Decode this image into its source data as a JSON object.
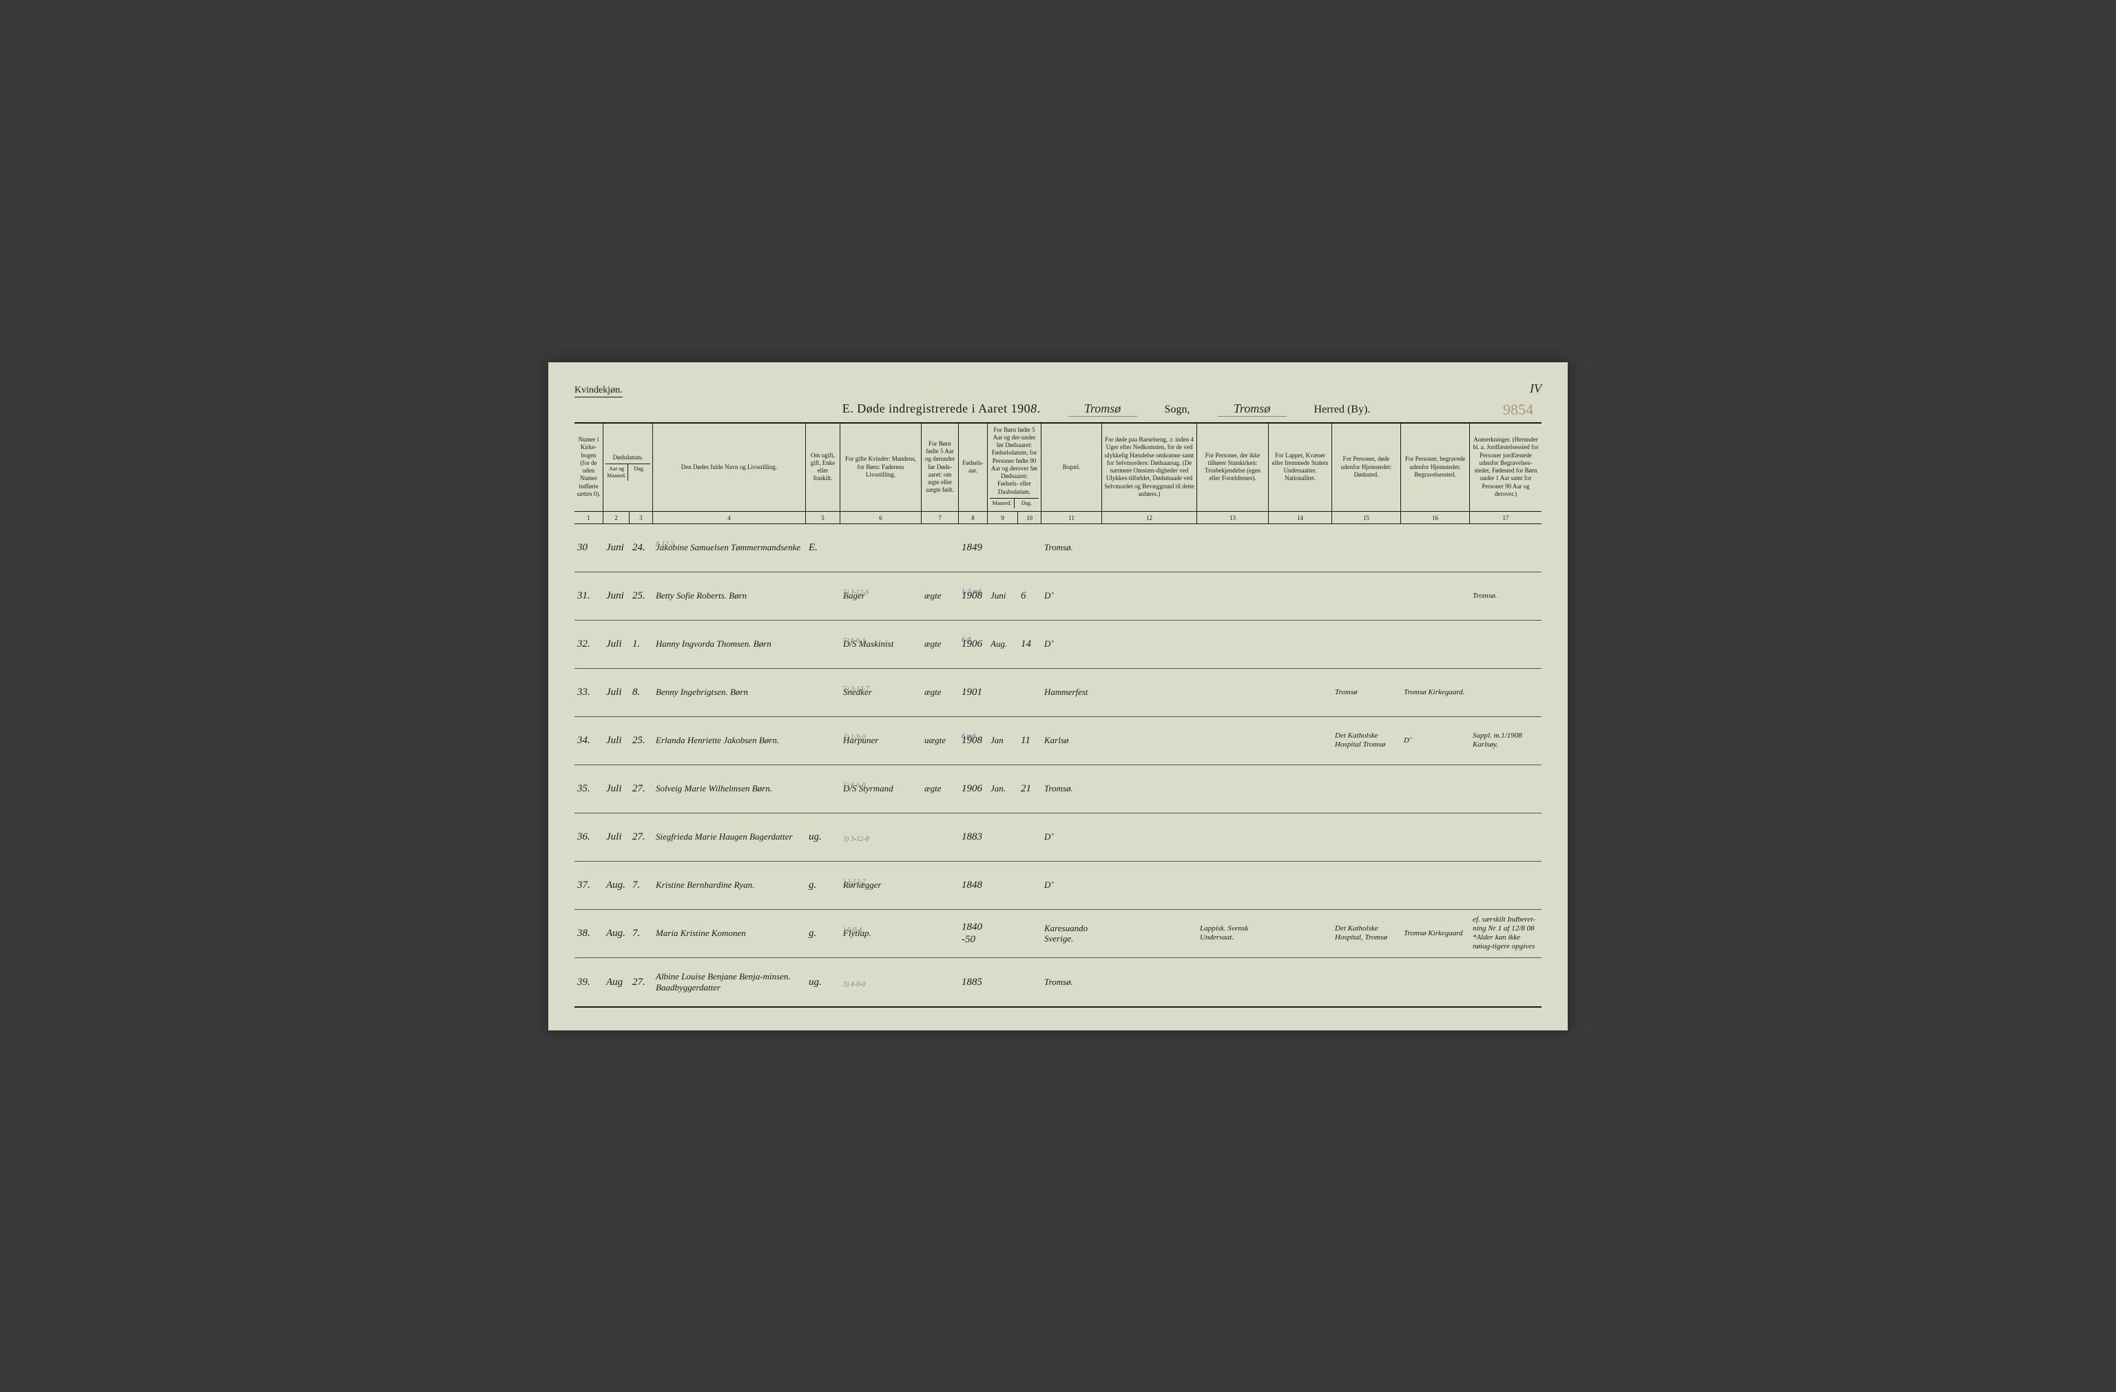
{
  "meta": {
    "gender_label": "Kvindekjøn.",
    "title_prefix": "E.   Døde indregistrerede i Aaret 190",
    "year_digit": "8",
    "title_suffix": ".",
    "sogn_value": "Tromsø",
    "sogn_label": "Sogn,",
    "herred_value": "Tromsø",
    "herred_label": "Herred (By).",
    "page_number": "IV",
    "faint_number": "9854"
  },
  "headers": [
    {
      "w": "c1",
      "text": "Numer i Kirke-bogen (for de uden Numer indførte sættes 0)."
    },
    {
      "w": "c23",
      "text": "Dødsdatum.",
      "sub": [
        "Aar og Maaned.",
        "Dag."
      ]
    },
    {
      "w": "c4",
      "text": "Den Dødes fulde Navn og Livsstilling."
    },
    {
      "w": "c5",
      "text": "Om ugift, gift, Enke eller fraskilt."
    },
    {
      "w": "c6",
      "text": "For gifte Kvinder: Mandens, for Børn: Faderens Livsstilling."
    },
    {
      "w": "c7",
      "text": "For Børn fødte 5 Aar og derunder før Døds-aaret: om ægte eller uægte født."
    },
    {
      "w": "c8",
      "text": "Fødsels-aar."
    },
    {
      "w": "c910",
      "text": "For Børn fødte 5 Aar og der-under før Dødsaaret: Fødselsdatum; for Personer fødte 90 Aar og derover før Dødsaaret: Fødsels- eller Daabsdatum.",
      "sub": [
        "Maaned.",
        "Dag."
      ]
    },
    {
      "w": "c11",
      "text": "Bopæl."
    },
    {
      "w": "c12",
      "text": "For døde paa Barselseng, ɔ: inden 4 Uger efter Nedkomsten, for de ved ulykkelig Hændelse omkomne samt for Selvmordere: Dødsaarsag. (De nærmere Omstæn-digheder ved Ulykkes-tilfældet, Dødsmaade ved Selvmordet og Bevæggrund til dette anføres.)"
    },
    {
      "w": "c13",
      "text": "For Personer, der ikke tilhører Statskirken: Trosbekjendelse (egen eller Forældrenes)."
    },
    {
      "w": "c14",
      "text": "For Lapper, Kvæner eller fremmede Staters Undersaatter. Nationalitet."
    },
    {
      "w": "c15",
      "text": "For Personer, døde udenfor Hjemstedet: Dødssted."
    },
    {
      "w": "c16",
      "text": "For Personer, begravede udenfor Hjemstedet: Begravelsessted."
    },
    {
      "w": "c17",
      "text": "Anmerkninger. (Herunder bl. a. Jordfæstelsessted for Personer jordfæstede udenfor Begravelses-stedet, Fødested for Børn under 1 Aar samt for Personer 90 Aar og derover.)"
    }
  ],
  "colnums": [
    "1",
    "2",
    "3",
    "4",
    "5",
    "6",
    "7",
    "8",
    "9",
    "10",
    "11",
    "12",
    "13",
    "14",
    "15",
    "16",
    "17"
  ],
  "rows": [
    {
      "c1": "30",
      "c2": "Juni",
      "c3": "24.",
      "c4": "Jakobine Samuelsen Tømmermandsenke",
      "c4_ann": "8-12-2",
      "c5": "E.",
      "c6": "",
      "c7": "",
      "c8": "1849",
      "c9": "",
      "c10": "",
      "c11": "Tromsø.",
      "c12": "",
      "c13": "",
      "c14": "",
      "c15": "",
      "c16": "",
      "c17": ""
    },
    {
      "c1": "31.",
      "c2": "Juni",
      "c3": "25.",
      "c4": "Betty Sofie Roberts. Børn",
      "c5": "",
      "c6": "Bager",
      "c6_ann": "5) 3-12-6",
      "c7": "ægte",
      "c8": "1908",
      "c8_ann": "1-2 md",
      "c9": "Juni",
      "c10": "6",
      "c11": "D˚",
      "c12": "",
      "c13": "",
      "c14": "",
      "c15": "",
      "c16": "",
      "c17": "Tromsø."
    },
    {
      "c1": "32.",
      "c2": "Juli",
      "c3": "1.",
      "c4": "Hanny Ingvorda Thomsen. Børn",
      "c5": "",
      "c6": "D/S Maskinist",
      "c6_ann": "5) 6-6-1",
      "c7": "ægte",
      "c8": "1906",
      "c8_ann": "6-0",
      "c9": "Aug.",
      "c10": "14",
      "c11": "D˚",
      "c12": "",
      "c13": "",
      "c14": "",
      "c15": "",
      "c16": "",
      "c17": ""
    },
    {
      "c1": "33.",
      "c2": "Juli",
      "c3": "8.",
      "c4": "Benny Ingebrigtsen. Børn",
      "c5": "",
      "c6": "Snedker",
      "c6_ann": "5) 3-12-7",
      "c7": "ægte",
      "c8": "1901",
      "c9": "",
      "c10": "",
      "c11": "Hammerfest",
      "c12": "",
      "c13": "",
      "c14": "",
      "c15": "Tromsø",
      "c16": "Tromsø Kirkegaard.",
      "c17": ""
    },
    {
      "c1": "34.",
      "c2": "Juli",
      "c3": "25.",
      "c4": "Erlanda Henriette Jakobsen Børn.",
      "c5": "",
      "c6": "Harpuner",
      "c6_ann": "3) 1-9-0",
      "c7": "uægte",
      "c8": "1908",
      "c8_ann": "6 md",
      "c9": "Jan",
      "c10": "11",
      "c11": "Karlsø",
      "c12": "",
      "c13": "",
      "c14": "",
      "c15": "Det Katholske Hospital Tromsø",
      "c16": "D˚",
      "c17": "Suppl. m.1/1908 Karlsøy."
    },
    {
      "c1": "35.",
      "c2": "Juli",
      "c3": "27.",
      "c4": "Solveig Marie Wilhelmsen Børn.",
      "c5": "",
      "c6": "D/S Styrmand",
      "c6_ann": "5) 6-6-0",
      "c7": "ægte",
      "c8": "1906",
      "c9": "Jan.",
      "c10": "21",
      "c11": "Tromsø.",
      "c12": "",
      "c13": "",
      "c14": "",
      "c15": "",
      "c16": "",
      "c17": ""
    },
    {
      "c1": "36.",
      "c2": "Juli",
      "c3": "27.",
      "c4": "Siegfrieda Marie Haugen Bagerdatter",
      "c5": "ug.",
      "c6": "",
      "c6_ann": "3) 3-12-8",
      "c7": "",
      "c8": "1883",
      "c9": "",
      "c10": "",
      "c11": "D˚",
      "c12": "",
      "c13": "",
      "c14": "",
      "c15": "",
      "c16": "",
      "c17": ""
    },
    {
      "c1": "37.",
      "c2": "Aug.",
      "c3": "7.",
      "c4": "Kristine Bernhardine Ryan.",
      "c5": "g.",
      "c6": "Rørlægger",
      "c6_ann": ") 3-12-2",
      "c7": "",
      "c8": "1848",
      "c9": "",
      "c10": "",
      "c11": "D˚",
      "c12": "",
      "c13": "",
      "c14": "",
      "c15": "",
      "c16": "",
      "c17": ""
    },
    {
      "c1": "38.",
      "c2": "Aug.",
      "c3": "7.",
      "c4": "Maria Kristine Komonen",
      "c5": "g.",
      "c6": "Flytlap.",
      "c6_ann": ") 0-0-4",
      "c7": "",
      "c8": "1840-50",
      "c9": "",
      "c10": "",
      "c11": "Karesuando Sverige.",
      "c12": "",
      "c13": "Lappisk. Svensk Undersaat.",
      "c14": "",
      "c15": "Det Katholske Hospital, Tromsø",
      "c16": "Tromsø Kirkegaard",
      "c17": "ef. særskilt Indberet-ning Nr 1 af 12/8 08 *Alder kan ikke nøiag-tigere opgives"
    },
    {
      "c1": "39.",
      "c2": "Aug",
      "c3": "27.",
      "c4": "Albine Louise Benjane Benja-minsen. Baadbyggerdatter",
      "c5": "ug.",
      "c6": "",
      "c6_ann": "3) 4-0-0",
      "c7": "",
      "c8": "1885",
      "c9": "",
      "c10": "",
      "c11": "Tromsø.",
      "c12": "",
      "c13": "",
      "c14": "",
      "c15": "",
      "c16": "",
      "c17": ""
    }
  ],
  "colors": {
    "page_bg": "#d8dcc8",
    "ink": "#1a1a1a",
    "pencil": "#7a8870",
    "blue_pencil": "#3a6a8a",
    "faint": "#a89878",
    "rule": "#555555"
  }
}
